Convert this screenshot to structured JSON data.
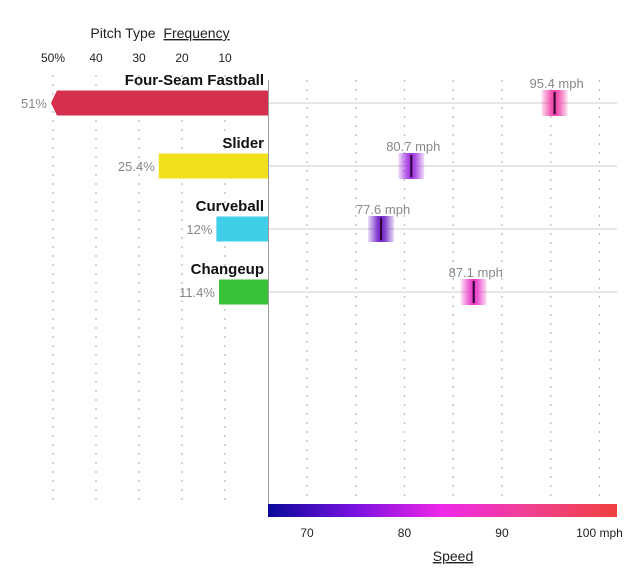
{
  "chart_data": {
    "type": "bar",
    "freq_title_prefix": "Pitch Type",
    "freq_title_link": "Frequency",
    "speed_title": "Speed",
    "freq_ticks": [
      {
        "value": 50,
        "label": "50%"
      },
      {
        "value": 40,
        "label": "40"
      },
      {
        "value": 30,
        "label": "30"
      },
      {
        "value": 20,
        "label": "20"
      },
      {
        "value": 10,
        "label": "10"
      }
    ],
    "speed_ticks": [
      {
        "value": 70,
        "label": "70"
      },
      {
        "value": 80,
        "label": "80"
      },
      {
        "value": 90,
        "label": "90"
      },
      {
        "value": 100,
        "label": "100 mph"
      }
    ],
    "speed_range": [
      66,
      101.8
    ],
    "pitches": [
      {
        "name": "Four-Seam Fastball",
        "freq": 51,
        "freq_label": "51%",
        "speed": 95.4,
        "speed_label": "95.4 mph",
        "color": "#d42f4d",
        "marker_color": "#f040a8"
      },
      {
        "name": "Slider",
        "freq": 25.4,
        "freq_label": "25.4%",
        "speed": 80.7,
        "speed_label": "80.7 mph",
        "color": "#f0e11c",
        "marker_color": "#a030e0"
      },
      {
        "name": "Curveball",
        "freq": 12,
        "freq_label": "12%",
        "speed": 77.6,
        "speed_label": "77.6 mph",
        "color": "#40cfe8",
        "marker_color": "#7020c8"
      },
      {
        "name": "Changeup",
        "freq": 11.4,
        "freq_label": "11.4%",
        "speed": 87.1,
        "speed_label": "87.1 mph",
        "color": "#38c23a",
        "marker_color": "#e838c8"
      }
    ],
    "speed_gradient": [
      "#0a0a9a",
      "#7a10e0",
      "#f028e8",
      "#f04090",
      "#f04040"
    ]
  }
}
